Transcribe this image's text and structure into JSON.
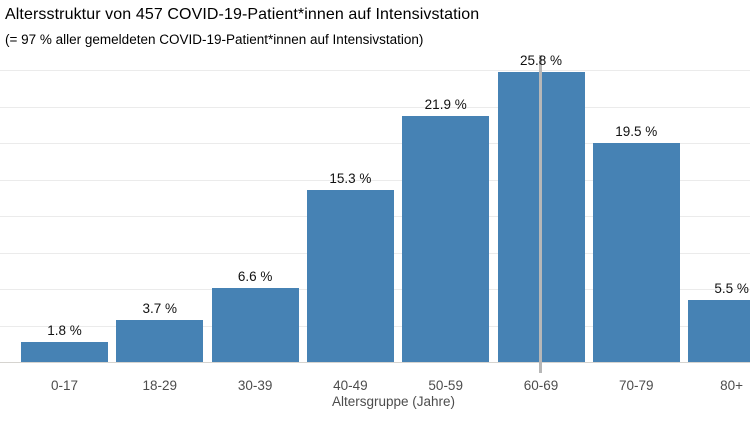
{
  "header": {
    "title": "Altersstruktur von 457 COVID-19-Patient*innen auf Intensivstation",
    "subtitle": "(= 97 % aller gemeldeten COVID-19-Patient*innen auf Intensivstation)"
  },
  "chart_data": {
    "type": "bar",
    "title": "Altersstruktur von 457 COVID-19-Patient*innen auf Intensivstation",
    "subtitle": "(= 97 % aller gemeldeten COVID-19-Patient*innen auf Intensivstation)",
    "categories": [
      "0-17",
      "18-29",
      "30-39",
      "40-49",
      "50-59",
      "60-69",
      "70-79",
      "80+"
    ],
    "values": [
      1.8,
      3.7,
      6.6,
      15.3,
      21.9,
      25.8,
      19.5,
      5.5
    ],
    "value_labels": [
      "1.8 %",
      "3.7 %",
      "6.6 %",
      "15.3 %",
      "21.9 %",
      "25.8 %",
      "19.5 %",
      "5.5 %"
    ],
    "xlabel": "Altersgruppe (Jahre)",
    "ylabel": "",
    "ylim": [
      0,
      26.5
    ],
    "grid": "horizontal",
    "legend": "none",
    "bar_color": "#4682b4",
    "highlight_category": "60-69",
    "highlight_line_color": "#b7b7b7"
  }
}
